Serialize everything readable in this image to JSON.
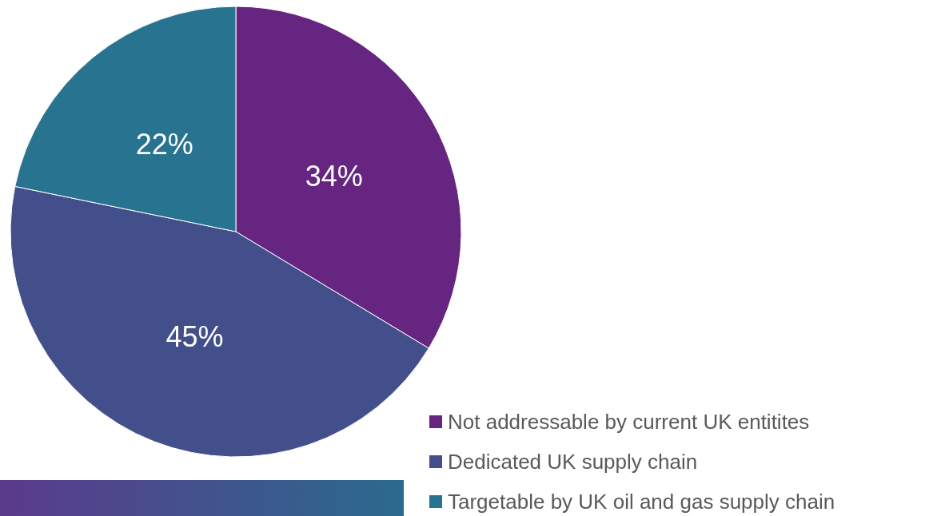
{
  "chart_data": {
    "type": "pie",
    "categories": [
      "Not addressable by current UK entitites",
      "Dedicated UK supply chain",
      "Targetable by UK oil and gas supply chain"
    ],
    "values": [
      34,
      45,
      22
    ],
    "colors": [
      "#652581",
      "#434f8a",
      "#277390"
    ],
    "value_labels": [
      "34%",
      "45%",
      "22%"
    ],
    "legend": "bottom right"
  }
}
